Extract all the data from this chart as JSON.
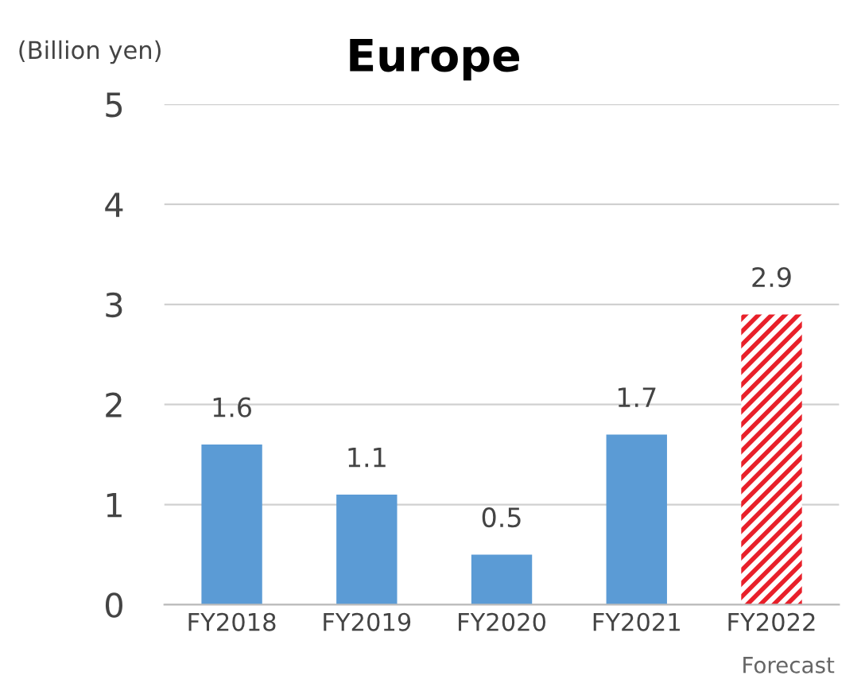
{
  "chart_data": {
    "type": "bar",
    "title": "Europe",
    "ylabel": "(Billion yen)",
    "categories": [
      "FY2018",
      "FY2019",
      "FY2020",
      "FY2021",
      "FY2022"
    ],
    "values": [
      1.6,
      1.1,
      0.5,
      1.7,
      2.9
    ],
    "colors": [
      "#5b9bd5",
      "#5b9bd5",
      "#5b9bd5",
      "#5b9bd5",
      "#e8202a"
    ],
    "ylim": [
      0,
      5
    ],
    "yticks": [
      0,
      1,
      2,
      3,
      4,
      5
    ],
    "grid": "y",
    "data_labels": true,
    "annotations": [
      "Forecast"
    ]
  }
}
